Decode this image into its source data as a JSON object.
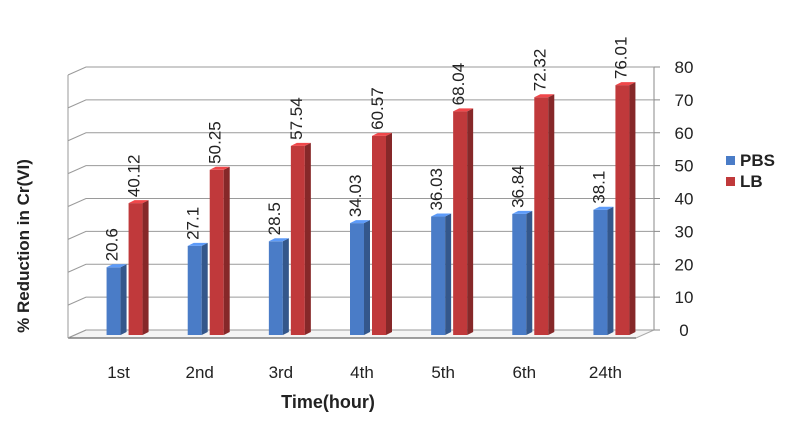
{
  "chart_data": {
    "type": "bar",
    "categories": [
      "1st",
      "2nd",
      "3rd",
      "4th",
      "5th",
      "6th",
      "24th"
    ],
    "series": [
      {
        "name": "PBS",
        "color": "#4a7cc7",
        "values": [
          20.6,
          27.1,
          28.5,
          34.03,
          36.03,
          36.84,
          38.1
        ],
        "labels": [
          "20.6",
          "27.1",
          "28.5",
          "34.03",
          "36.03",
          "36.84",
          "38.1"
        ]
      },
      {
        "name": "LB",
        "color": "#c0393b",
        "values": [
          40.12,
          50.25,
          57.54,
          60.57,
          68.04,
          72.32,
          76.01
        ],
        "labels": [
          "40.12",
          "50.25",
          "57.54",
          "60.57",
          "68.04",
          "72.32",
          "76.01"
        ]
      }
    ],
    "xlabel": "Time(hour)",
    "ylabel": "% Reduction in  Cr(VI)",
    "ylim": [
      0,
      80
    ],
    "yticks": [
      "0",
      "10",
      "20",
      "30",
      "40",
      "50",
      "60",
      "70",
      "80"
    ],
    "grid": true,
    "legend_position": "right",
    "style": "3d-clustered-column"
  }
}
